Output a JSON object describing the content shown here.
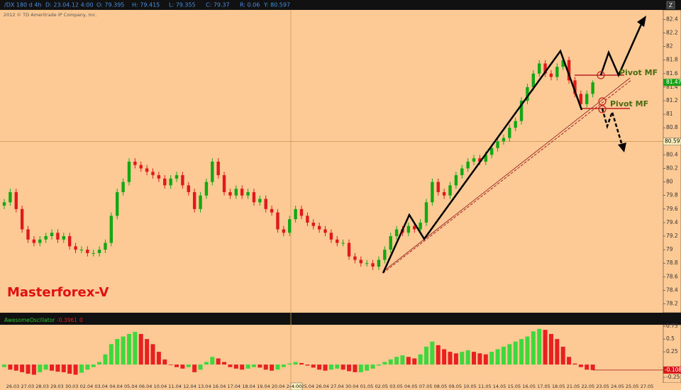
{
  "chart_data": {
    "type": "candlestick",
    "header": {
      "symbol": "/DX 180 d 4h",
      "date": "D: 23.04.12 4:00",
      "open": "O: 79.395",
      "high": "H: 79.415",
      "low": "L: 79.355",
      "close": "C: 79.37",
      "range": "R: 0.06",
      "y": "Y: 80.597"
    },
    "copyright": "2012 © TD Ameritrade IP Company, Inc.",
    "ylim": [
      78.08,
      82.54
    ],
    "yticks": [
      82.4,
      82.2,
      82,
      81.8,
      81.6,
      81.4,
      81.2,
      81,
      80.8,
      80.4,
      80.2,
      80,
      79.8,
      79.6,
      79.4,
      79.2,
      79,
      78.8,
      78.6,
      78.4,
      78.2
    ],
    "crosshair_price": 80.597,
    "last_price": 81.47,
    "crosshair_time": "4:00",
    "watermark": "Masterforex-V",
    "annotations": [
      "Pivot MF",
      "Pivot MF"
    ],
    "x_labels": [
      "26.03",
      "27.03",
      "28.03",
      "29.03",
      "30.03",
      "02.04",
      "03.04",
      "04.04",
      "05.04",
      "06.04",
      "10.04",
      "11.04",
      "12.04",
      "13.04",
      "16.04",
      "17.04",
      "18.04",
      "19.04",
      "20.04",
      "24.04",
      "25.04",
      "26.04",
      "27.04",
      "30.04",
      "01.05",
      "02.05",
      "03.05",
      "04.05",
      "07.05",
      "08.05",
      "09.05",
      "10.05",
      "11.05",
      "14.05",
      "15.05",
      "16.05",
      "17.05",
      "18.05",
      "21.05",
      "22.05",
      "23.05",
      "24.05",
      "25.05",
      "27.05"
    ],
    "candles": [
      [
        79.65,
        79.75,
        79.6,
        79.7
      ],
      [
        79.7,
        79.9,
        79.65,
        79.85
      ],
      [
        79.85,
        79.9,
        79.55,
        79.6
      ],
      [
        79.6,
        79.65,
        79.25,
        79.3
      ],
      [
        79.3,
        79.35,
        79.1,
        79.15
      ],
      [
        79.15,
        79.2,
        79.05,
        79.1
      ],
      [
        79.1,
        79.2,
        79.05,
        79.15
      ],
      [
        79.15,
        79.25,
        79.1,
        79.2
      ],
      [
        79.2,
        79.3,
        79.15,
        79.25
      ],
      [
        79.25,
        79.3,
        79.1,
        79.15
      ],
      [
        79.15,
        79.25,
        79.1,
        79.2
      ],
      [
        79.2,
        79.25,
        79.0,
        79.05
      ],
      [
        79.05,
        79.1,
        78.95,
        79.0
      ],
      [
        79.0,
        79.05,
        78.95,
        79.0
      ],
      [
        79.0,
        79.05,
        78.9,
        78.95
      ],
      [
        78.95,
        79.0,
        78.9,
        78.95
      ],
      [
        78.95,
        79.05,
        78.9,
        79.0
      ],
      [
        79.0,
        79.15,
        78.95,
        79.1
      ],
      [
        79.1,
        79.55,
        79.05,
        79.5
      ],
      [
        79.5,
        79.9,
        79.45,
        79.85
      ],
      [
        79.85,
        80.05,
        79.8,
        80.0
      ],
      [
        80.0,
        80.35,
        79.95,
        80.3
      ],
      [
        80.3,
        80.35,
        80.2,
        80.25
      ],
      [
        80.25,
        80.3,
        80.15,
        80.2
      ],
      [
        80.2,
        80.25,
        80.1,
        80.15
      ],
      [
        80.15,
        80.2,
        80.05,
        80.1
      ],
      [
        80.1,
        80.15,
        80.0,
        80.05
      ],
      [
        80.05,
        80.1,
        79.9,
        79.95
      ],
      [
        79.95,
        80.1,
        79.9,
        80.05
      ],
      [
        80.05,
        80.15,
        80.0,
        80.1
      ],
      [
        80.1,
        80.15,
        79.9,
        79.95
      ],
      [
        79.95,
        80.0,
        79.8,
        79.85
      ],
      [
        79.85,
        79.9,
        79.55,
        79.6
      ],
      [
        79.6,
        79.85,
        79.55,
        79.8
      ],
      [
        79.8,
        80.05,
        79.75,
        80.0
      ],
      [
        80.0,
        80.35,
        79.95,
        80.3
      ],
      [
        80.3,
        80.35,
        80.05,
        80.1
      ],
      [
        80.1,
        80.15,
        79.8,
        79.85
      ],
      [
        79.85,
        79.9,
        79.75,
        79.8
      ],
      [
        79.8,
        79.95,
        79.75,
        79.9
      ],
      [
        79.9,
        79.95,
        79.75,
        79.8
      ],
      [
        79.8,
        79.9,
        79.75,
        79.85
      ],
      [
        79.85,
        79.9,
        79.65,
        79.7
      ],
      [
        79.7,
        79.8,
        79.65,
        79.75
      ],
      [
        79.75,
        79.8,
        79.55,
        79.6
      ],
      [
        79.6,
        79.65,
        79.5,
        79.55
      ],
      [
        79.55,
        79.6,
        79.25,
        79.3
      ],
      [
        79.3,
        79.35,
        79.2,
        79.25
      ],
      [
        79.25,
        79.5,
        79.2,
        79.45
      ],
      [
        79.45,
        79.65,
        79.4,
        79.6
      ],
      [
        79.6,
        79.65,
        79.45,
        79.5
      ],
      [
        79.5,
        79.55,
        79.35,
        79.4
      ],
      [
        79.4,
        79.45,
        79.3,
        79.35
      ],
      [
        79.35,
        79.4,
        79.25,
        79.3
      ],
      [
        79.3,
        79.35,
        79.2,
        79.25
      ],
      [
        79.25,
        79.3,
        79.1,
        79.15
      ],
      [
        79.15,
        79.2,
        79.05,
        79.1
      ],
      [
        79.1,
        79.15,
        79.05,
        79.1
      ],
      [
        79.1,
        79.15,
        78.85,
        78.9
      ],
      [
        78.9,
        78.95,
        78.8,
        78.85
      ],
      [
        78.85,
        78.9,
        78.75,
        78.8
      ],
      [
        78.8,
        78.85,
        78.75,
        78.8
      ],
      [
        78.8,
        78.85,
        78.7,
        78.75
      ],
      [
        78.75,
        78.9,
        78.7,
        78.85
      ],
      [
        78.85,
        79.05,
        78.8,
        79.0
      ],
      [
        79.0,
        79.25,
        78.95,
        79.2
      ],
      [
        79.2,
        79.35,
        79.15,
        79.3
      ],
      [
        79.3,
        79.35,
        79.2,
        79.25
      ],
      [
        79.25,
        79.4,
        79.2,
        79.35
      ],
      [
        79.35,
        79.4,
        79.25,
        79.3
      ],
      [
        79.3,
        79.45,
        79.25,
        79.4
      ],
      [
        79.4,
        79.75,
        79.35,
        79.7
      ],
      [
        79.7,
        80.05,
        79.65,
        80.0
      ],
      [
        80.0,
        80.05,
        79.8,
        79.85
      ],
      [
        79.85,
        79.9,
        79.75,
        79.8
      ],
      [
        79.8,
        80.0,
        79.75,
        79.95
      ],
      [
        79.95,
        80.15,
        79.9,
        80.1
      ],
      [
        80.1,
        80.25,
        80.05,
        80.2
      ],
      [
        80.2,
        80.35,
        80.15,
        80.3
      ],
      [
        80.3,
        80.4,
        80.25,
        80.35
      ],
      [
        80.35,
        80.4,
        80.25,
        80.3
      ],
      [
        80.3,
        80.45,
        80.25,
        80.4
      ],
      [
        80.4,
        80.55,
        80.35,
        80.5
      ],
      [
        80.5,
        80.65,
        80.45,
        80.6
      ],
      [
        80.6,
        80.7,
        80.55,
        80.65
      ],
      [
        80.65,
        80.85,
        80.6,
        80.8
      ],
      [
        80.8,
        80.95,
        80.75,
        80.9
      ],
      [
        80.9,
        81.25,
        80.85,
        81.2
      ],
      [
        81.2,
        81.45,
        81.15,
        81.4
      ],
      [
        81.4,
        81.65,
        81.35,
        81.6
      ],
      [
        81.6,
        81.8,
        81.55,
        81.75
      ],
      [
        81.75,
        81.8,
        81.55,
        81.6
      ],
      [
        81.6,
        81.65,
        81.5,
        81.55
      ],
      [
        81.55,
        81.75,
        81.5,
        81.7
      ],
      [
        81.7,
        81.85,
        81.65,
        81.8
      ],
      [
        81.8,
        81.85,
        81.45,
        81.5
      ],
      [
        81.5,
        81.55,
        81.25,
        81.3
      ],
      [
        81.3,
        81.35,
        81.1,
        81.15
      ],
      [
        81.15,
        81.35,
        81.1,
        81.3
      ],
      [
        81.3,
        81.5,
        81.25,
        81.47
      ]
    ],
    "indicator": {
      "name": "AwesomeOscillator",
      "header_values": [
        -0.3961,
        0
      ],
      "ylim": [
        -0.36,
        0.78
      ],
      "yticks": [
        0.75,
        0.5,
        0.25,
        -0.25
      ],
      "last": -0.108,
      "values": [
        -0.05,
        -0.1,
        -0.12,
        -0.15,
        -0.18,
        -0.2,
        -0.15,
        -0.1,
        -0.12,
        -0.14,
        -0.15,
        -0.18,
        -0.2,
        -0.16,
        -0.1,
        -0.05,
        0.05,
        0.2,
        0.4,
        0.5,
        0.55,
        0.6,
        0.64,
        0.6,
        0.5,
        0.4,
        0.25,
        0.1,
        0.0,
        -0.05,
        -0.08,
        -0.05,
        -0.15,
        -0.1,
        0.05,
        0.15,
        0.12,
        0.05,
        -0.05,
        -0.08,
        -0.1,
        -0.08,
        -0.05,
        -0.06,
        -0.1,
        -0.12,
        -0.1,
        -0.05,
        0.02,
        0.05,
        0.03,
        -0.02,
        -0.06,
        -0.1,
        -0.12,
        -0.1,
        -0.08,
        -0.1,
        -0.13,
        -0.15,
        -0.15,
        -0.12,
        -0.08,
        -0.02,
        0.05,
        0.1,
        0.15,
        0.18,
        0.15,
        0.12,
        0.2,
        0.35,
        0.45,
        0.38,
        0.3,
        0.25,
        0.22,
        0.25,
        0.28,
        0.25,
        0.22,
        0.2,
        0.25,
        0.3,
        0.35,
        0.4,
        0.45,
        0.5,
        0.55,
        0.65,
        0.7,
        0.68,
        0.6,
        0.5,
        0.35,
        0.15,
        0.02,
        -0.05,
        -0.1,
        -0.108
      ]
    }
  }
}
